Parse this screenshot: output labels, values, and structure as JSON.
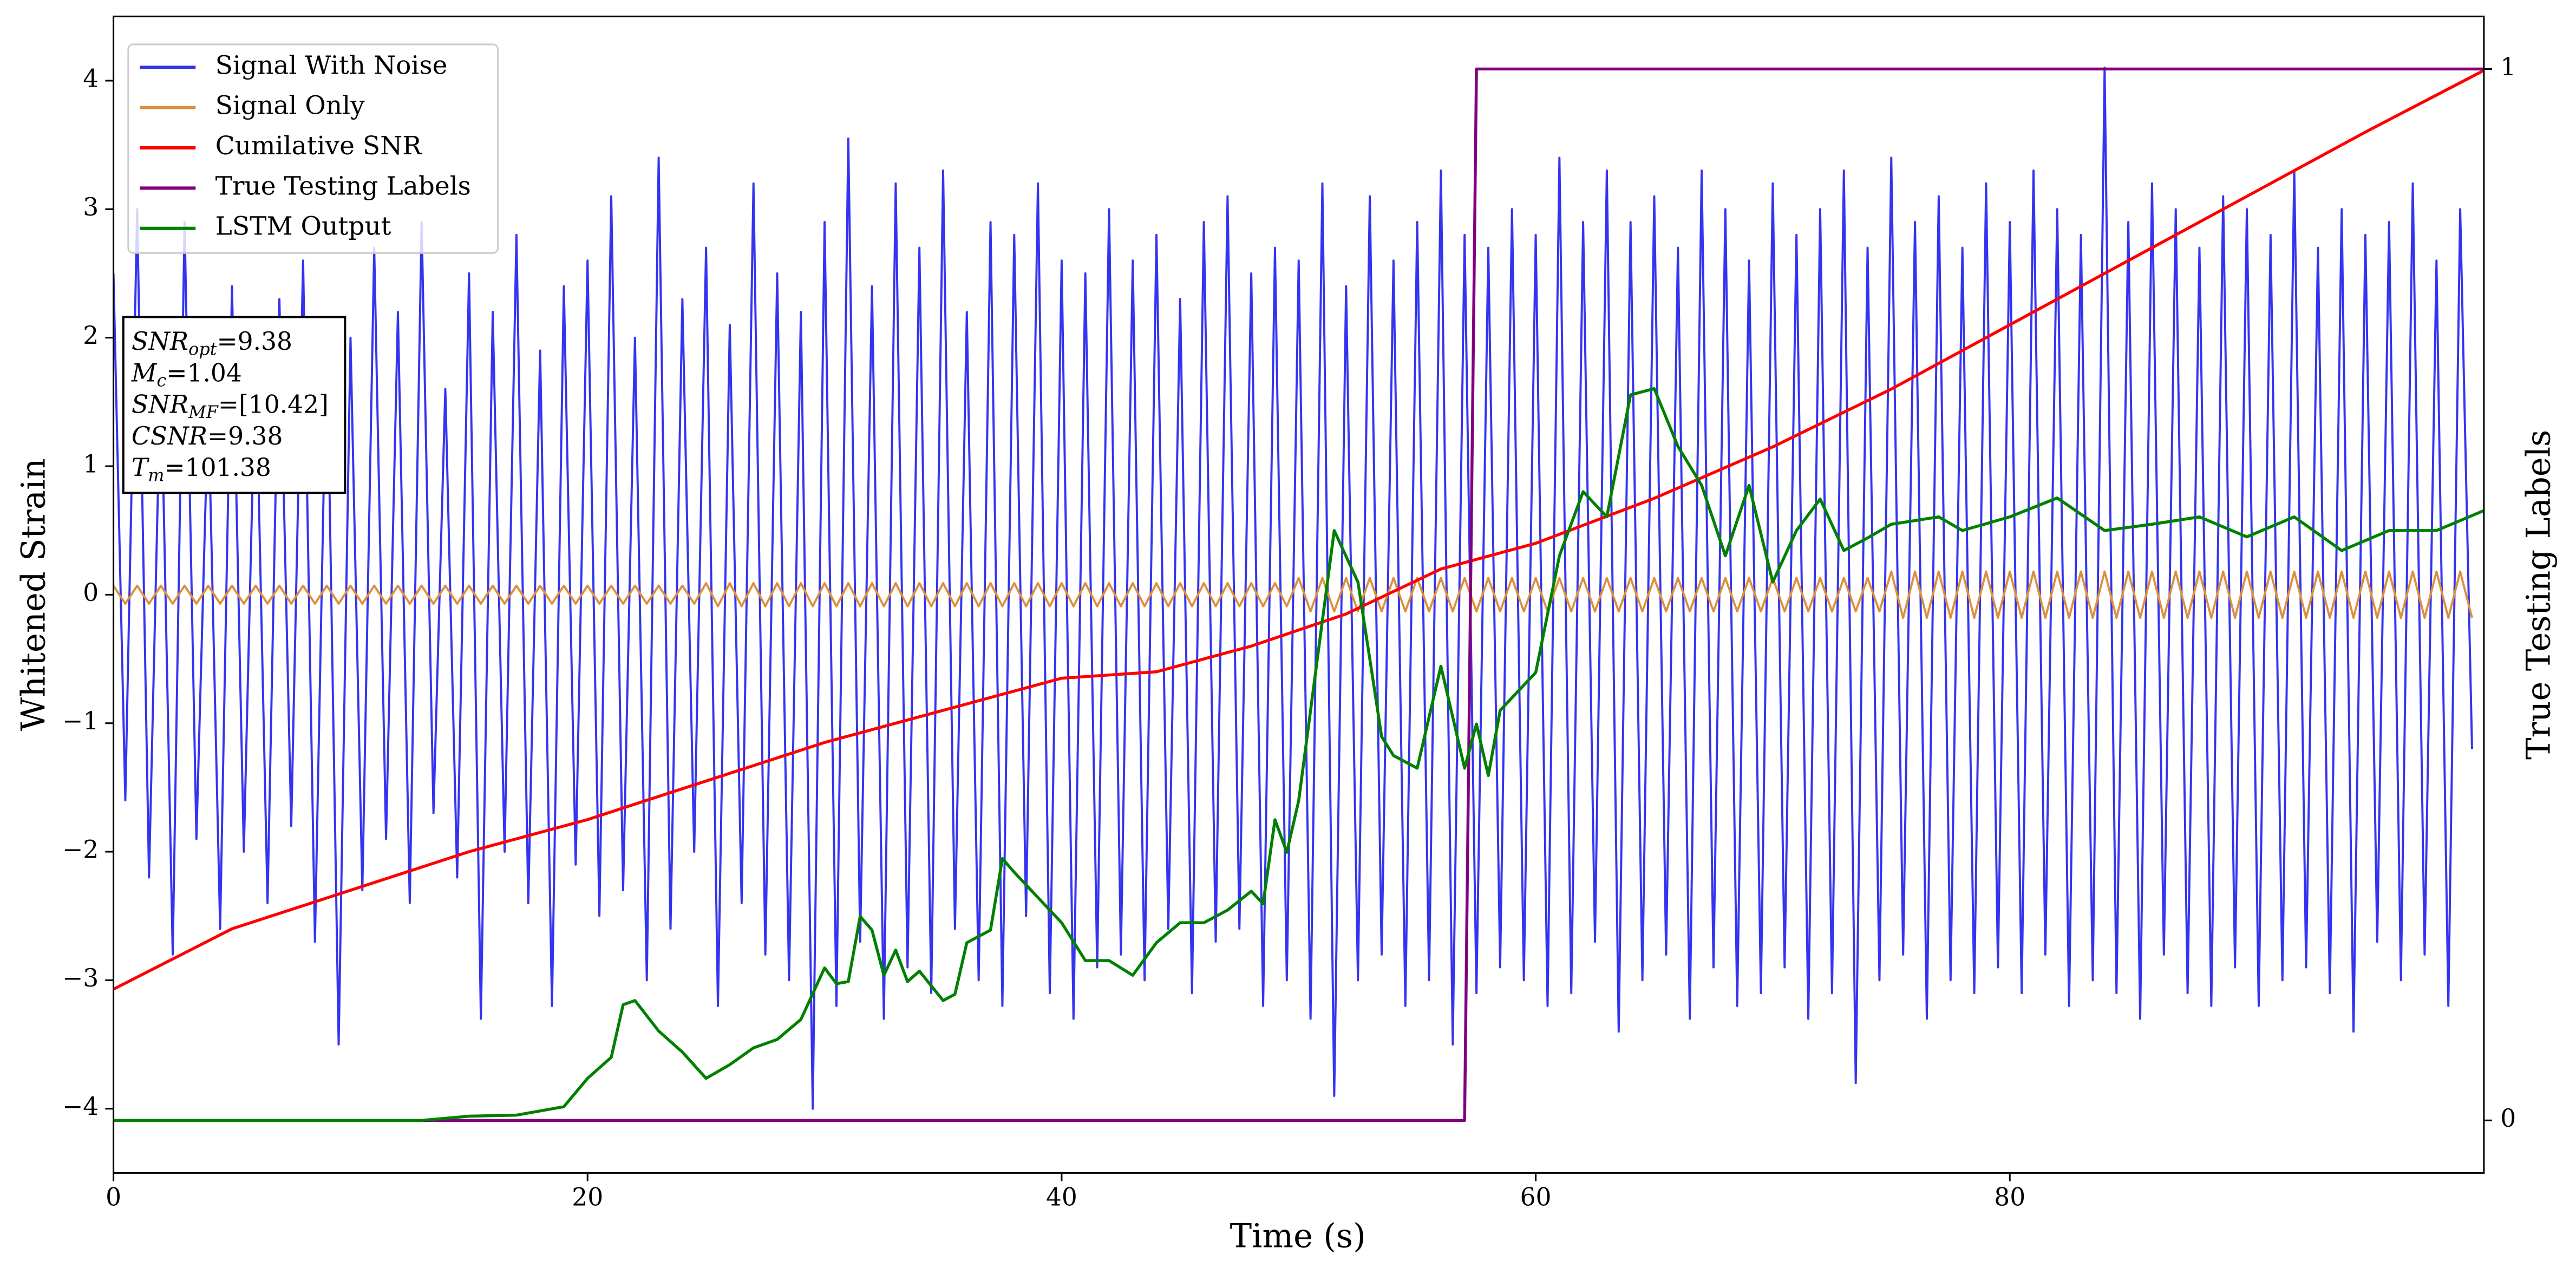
{
  "chart_data": {
    "type": "line",
    "xlabel": "Time (s)",
    "ylabel": "Whitened Strain",
    "y2label": "True Testing Labels",
    "xlim": [
      0,
      100
    ],
    "ylim": [
      -4.5,
      4.5
    ],
    "y2lim": [
      -0.05,
      1.05
    ],
    "xticks": [
      0,
      20,
      40,
      60,
      80
    ],
    "yticks": [
      {
        "value": -4,
        "label": "−4"
      },
      {
        "value": -3,
        "label": "−3"
      },
      {
        "value": -2,
        "label": "−2"
      },
      {
        "value": -1,
        "label": "−1"
      },
      0,
      1,
      2,
      3,
      4
    ],
    "y2ticks": [
      0,
      1
    ],
    "legend": "upper left",
    "x": [
      0,
      0.5,
      1,
      1.5,
      2,
      2.5,
      3,
      3.5,
      4,
      4.5,
      5,
      5.5,
      6,
      6.5,
      7,
      7.5,
      8,
      8.5,
      9,
      9.5,
      10,
      10.5,
      11,
      11.5,
      12,
      12.5,
      13,
      13.5,
      14,
      14.5,
      15,
      15.5,
      16,
      16.5,
      17,
      17.5,
      18,
      18.5,
      19,
      19.5,
      20,
      20.5,
      21,
      21.5,
      22,
      22.5,
      23,
      23.5,
      24,
      24.5,
      25,
      25.5,
      26,
      26.5,
      27,
      27.5,
      28,
      28.5,
      29,
      29.5,
      30,
      30.5,
      31,
      31.5,
      32,
      32.5,
      33,
      33.5,
      34,
      34.5,
      35,
      35.5,
      36,
      36.5,
      37,
      37.5,
      38,
      38.5,
      39,
      39.5,
      40,
      40.5,
      41,
      41.5,
      42,
      42.5,
      43,
      43.5,
      44,
      44.5,
      45,
      45.5,
      46,
      46.5,
      47,
      47.5,
      48,
      48.5,
      49,
      49.5,
      50,
      50.5,
      51,
      51.5,
      52,
      52.5,
      53,
      53.5,
      54,
      54.5,
      55,
      55.5,
      56,
      56.5,
      57,
      57.5,
      58,
      58.5,
      59,
      59.5,
      60,
      60.5,
      61,
      61.5,
      62,
      62.5,
      63,
      63.5,
      64,
      64.5,
      65,
      65.5,
      66,
      66.5,
      67,
      67.5,
      68,
      68.5,
      69,
      69.5,
      70,
      70.5,
      71,
      71.5,
      72,
      72.5,
      73,
      73.5,
      74,
      74.5,
      75,
      75.5,
      76,
      76.5,
      77,
      77.5,
      78,
      78.5,
      79,
      79.5,
      80,
      80.5,
      81,
      81.5,
      82,
      82.5,
      83,
      83.5,
      84,
      84.5,
      85,
      85.5,
      86,
      86.5,
      87,
      87.5,
      88,
      88.5,
      89,
      89.5,
      90,
      90.5,
      91,
      91.5,
      92,
      92.5,
      93,
      93.5,
      94,
      94.5,
      95,
      95.5,
      96,
      96.5,
      97,
      97.5,
      98,
      98.5,
      99,
      99.5
    ],
    "series": [
      {
        "name": "Signal With Noise",
        "color": "#3434f0",
        "values": [
          2.5,
          -1.6,
          3.0,
          -2.2,
          1.8,
          -2.8,
          2.9,
          -1.9,
          1.5,
          -2.6,
          2.4,
          -2.0,
          1.9,
          -2.4,
          2.3,
          -1.8,
          2.6,
          -2.7,
          2.1,
          -3.5,
          2.0,
          -2.3,
          2.7,
          -1.9,
          2.2,
          -2.4,
          2.9,
          -1.7,
          1.6,
          -2.2,
          2.5,
          -3.3,
          2.2,
          -2.0,
          2.8,
          -2.4,
          1.9,
          -3.2,
          2.4,
          -2.1,
          2.6,
          -2.5,
          3.1,
          -2.3,
          2.0,
          -3.0,
          3.4,
          -2.6,
          2.3,
          -2.0,
          2.7,
          -3.2,
          2.1,
          -2.4,
          3.2,
          -2.8,
          2.5,
          -3.0,
          2.2,
          -4.0,
          2.9,
          -3.2,
          3.55,
          -2.7,
          2.4,
          -3.3,
          3.2,
          -2.9,
          2.7,
          -3.1,
          3.3,
          -2.6,
          2.2,
          -3.0,
          2.9,
          -3.2,
          2.8,
          -2.5,
          3.2,
          -3.1,
          2.6,
          -3.3,
          2.5,
          -2.9,
          3.0,
          -2.8,
          2.6,
          -3.0,
          2.8,
          -2.6,
          2.3,
          -3.1,
          2.9,
          -2.7,
          3.1,
          -2.6,
          2.5,
          -3.2,
          2.7,
          -3.0,
          2.6,
          -3.3,
          3.2,
          -3.9,
          2.4,
          -3.0,
          3.1,
          -2.8,
          2.6,
          -3.2,
          2.9,
          -3.0,
          3.3,
          -3.5,
          2.8,
          -3.1,
          2.7,
          -2.9,
          3.0,
          -3.0,
          2.8,
          -3.2,
          3.4,
          -3.1,
          2.9,
          -2.7,
          3.3,
          -3.4,
          2.9,
          -3.0,
          3.1,
          -2.8,
          2.7,
          -3.3,
          3.3,
          -2.9,
          3.0,
          -3.2,
          2.6,
          -3.1,
          3.2,
          -2.9,
          2.8,
          -3.3,
          3.0,
          -3.1,
          3.3,
          -3.8,
          2.7,
          -3.0,
          3.4,
          -2.8,
          2.9,
          -3.3,
          3.1,
          -3.0,
          2.7,
          -3.1,
          3.2,
          -2.9,
          2.9,
          -3.1,
          3.3,
          -2.8,
          3.0,
          -3.2,
          2.8,
          -3.0,
          4.1,
          -3.1,
          2.9,
          -3.3,
          3.2,
          -2.8,
          3.0,
          -3.1,
          2.7,
          -3.2,
          3.1,
          -2.9,
          3.0,
          -3.2,
          2.8,
          -3.0,
          3.3,
          -2.9,
          2.7,
          -3.1,
          3.0,
          -3.4,
          2.8,
          -2.7,
          2.9,
          -3.0,
          3.2,
          -2.8,
          2.6,
          -3.2,
          3.0,
          -1.2
        ]
      },
      {
        "name": "Signal Only",
        "color": "#dd8f3a",
        "values": [
          0.07,
          -0.07,
          0.07,
          -0.07,
          0.07,
          -0.07,
          0.07,
          -0.07,
          0.07,
          -0.07,
          0.07,
          -0.07,
          0.07,
          -0.07,
          0.07,
          -0.07,
          0.07,
          -0.07,
          0.07,
          -0.07,
          0.07,
          -0.07,
          0.07,
          -0.07,
          0.07,
          -0.07,
          0.07,
          -0.07,
          0.07,
          -0.07,
          0.07,
          -0.07,
          0.07,
          -0.07,
          0.07,
          -0.07,
          0.07,
          -0.07,
          0.07,
          -0.07,
          0.07,
          -0.07,
          0.07,
          -0.07,
          0.07,
          -0.07,
          0.07,
          -0.07,
          0.07,
          -0.07,
          0.09,
          -0.09,
          0.09,
          -0.09,
          0.09,
          -0.09,
          0.09,
          -0.09,
          0.09,
          -0.09,
          0.09,
          -0.09,
          0.09,
          -0.09,
          0.09,
          -0.09,
          0.09,
          -0.09,
          0.09,
          -0.09,
          0.09,
          -0.09,
          0.09,
          -0.09,
          0.09,
          -0.09,
          0.09,
          -0.09,
          0.09,
          -0.09,
          0.09,
          -0.09,
          0.09,
          -0.09,
          0.09,
          -0.09,
          0.09,
          -0.09,
          0.09,
          -0.09,
          0.09,
          -0.09,
          0.09,
          -0.09,
          0.09,
          -0.09,
          0.09,
          -0.09,
          0.09,
          -0.09,
          0.13,
          -0.13,
          0.13,
          -0.13,
          0.13,
          -0.13,
          0.13,
          -0.13,
          0.13,
          -0.13,
          0.13,
          -0.13,
          0.13,
          -0.13,
          0.13,
          -0.13,
          0.13,
          -0.13,
          0.13,
          -0.13,
          0.13,
          -0.13,
          0.13,
          -0.13,
          0.13,
          -0.13,
          0.13,
          -0.13,
          0.13,
          -0.13,
          0.13,
          -0.13,
          0.13,
          -0.13,
          0.13,
          -0.13,
          0.13,
          -0.13,
          0.13,
          -0.13,
          0.13,
          -0.13,
          0.13,
          -0.13,
          0.13,
          -0.13,
          0.13,
          -0.13,
          0.13,
          -0.13,
          0.18,
          -0.18,
          0.18,
          -0.18,
          0.18,
          -0.18,
          0.18,
          -0.18,
          0.18,
          -0.18,
          0.18,
          -0.18,
          0.18,
          -0.18,
          0.18,
          -0.18,
          0.18,
          -0.18,
          0.18,
          -0.18,
          0.18,
          -0.18,
          0.18,
          -0.18,
          0.18,
          -0.18,
          0.18,
          -0.18,
          0.18,
          -0.18,
          0.18,
          -0.18,
          0.18,
          -0.18,
          0.18,
          -0.18,
          0.18,
          -0.18,
          0.18,
          -0.18,
          0.18,
          -0.18,
          0.18,
          -0.18,
          0.18,
          -0.18,
          0.18,
          -0.18,
          0.18,
          -0.18
        ]
      },
      {
        "name": "Cumilative SNR",
        "color": "#ff0000",
        "x": [
          0,
          5,
          10,
          15,
          20,
          25,
          30,
          35,
          40,
          44,
          48,
          52,
          56,
          60,
          65,
          70,
          75,
          80,
          85,
          90,
          95,
          100
        ],
        "values": [
          -3.07,
          -2.6,
          -2.3,
          -2.0,
          -1.75,
          -1.45,
          -1.15,
          -0.9,
          -0.65,
          -0.6,
          -0.4,
          -0.15,
          0.2,
          0.4,
          0.75,
          1.15,
          1.6,
          2.1,
          2.6,
          3.1,
          3.6,
          4.08
        ]
      },
      {
        "name": "True Testing Labels",
        "color": "#800080",
        "axis": "y2",
        "x": [
          0,
          57,
          57.5,
          100
        ],
        "values": [
          0,
          0,
          1,
          1
        ]
      },
      {
        "name": "LSTM Output",
        "color": "#008000",
        "axis": "y2",
        "x": [
          0,
          13,
          15,
          17,
          19,
          20,
          21,
          21.5,
          22,
          23,
          24,
          25,
          26,
          27,
          28,
          29,
          30,
          30.5,
          31,
          31.5,
          32,
          32.5,
          33,
          33.5,
          34,
          35,
          35.5,
          36,
          37,
          37.5,
          38,
          39,
          40,
          41,
          42,
          43,
          44,
          45,
          46,
          47,
          48,
          48.5,
          49,
          49.5,
          50,
          51.5,
          52.5,
          53,
          53.5,
          54,
          55,
          56,
          57,
          57.5,
          58,
          58.5,
          59,
          60,
          61,
          62,
          63,
          64,
          65,
          66,
          67,
          68,
          69,
          70,
          71,
          72,
          73,
          74,
          75,
          77,
          78,
          80,
          82,
          84,
          86,
          88,
          90,
          92,
          94,
          96,
          98,
          100
        ],
        "values": [
          0,
          0,
          0.004,
          0.005,
          0.013,
          0.04,
          0.06,
          0.11,
          0.114,
          0.085,
          0.065,
          0.04,
          0.053,
          0.069,
          0.077,
          0.096,
          0.145,
          0.13,
          0.132,
          0.194,
          0.181,
          0.138,
          0.162,
          0.132,
          0.142,
          0.114,
          0.12,
          0.169,
          0.181,
          0.249,
          0.236,
          0.212,
          0.188,
          0.152,
          0.152,
          0.138,
          0.169,
          0.188,
          0.188,
          0.2,
          0.218,
          0.206,
          0.286,
          0.255,
          0.304,
          0.561,
          0.512,
          0.439,
          0.365,
          0.347,
          0.335,
          0.432,
          0.335,
          0.377,
          0.328,
          0.39,
          0.402,
          0.426,
          0.537,
          0.598,
          0.574,
          0.69,
          0.696,
          0.641,
          0.604,
          0.537,
          0.604,
          0.512,
          0.561,
          0.591,
          0.542,
          0.554,
          0.567,
          0.574,
          0.561,
          0.574,
          0.592,
          0.561,
          0.567,
          0.574,
          0.555,
          0.574,
          0.542,
          0.561,
          0.561,
          0.58
        ]
      }
    ],
    "annotation": [
      {
        "name": "SNR",
        "sub": "opt",
        "text": "=9.38"
      },
      {
        "name": "M",
        "sub": "c",
        "text": "=1.04"
      },
      {
        "name": "SNR",
        "sub": "MF",
        "text": "=[10.42]"
      },
      {
        "name": "CSNR",
        "text": "=9.38"
      },
      {
        "name": "T",
        "sub": "m",
        "text": "=101.38"
      }
    ]
  }
}
